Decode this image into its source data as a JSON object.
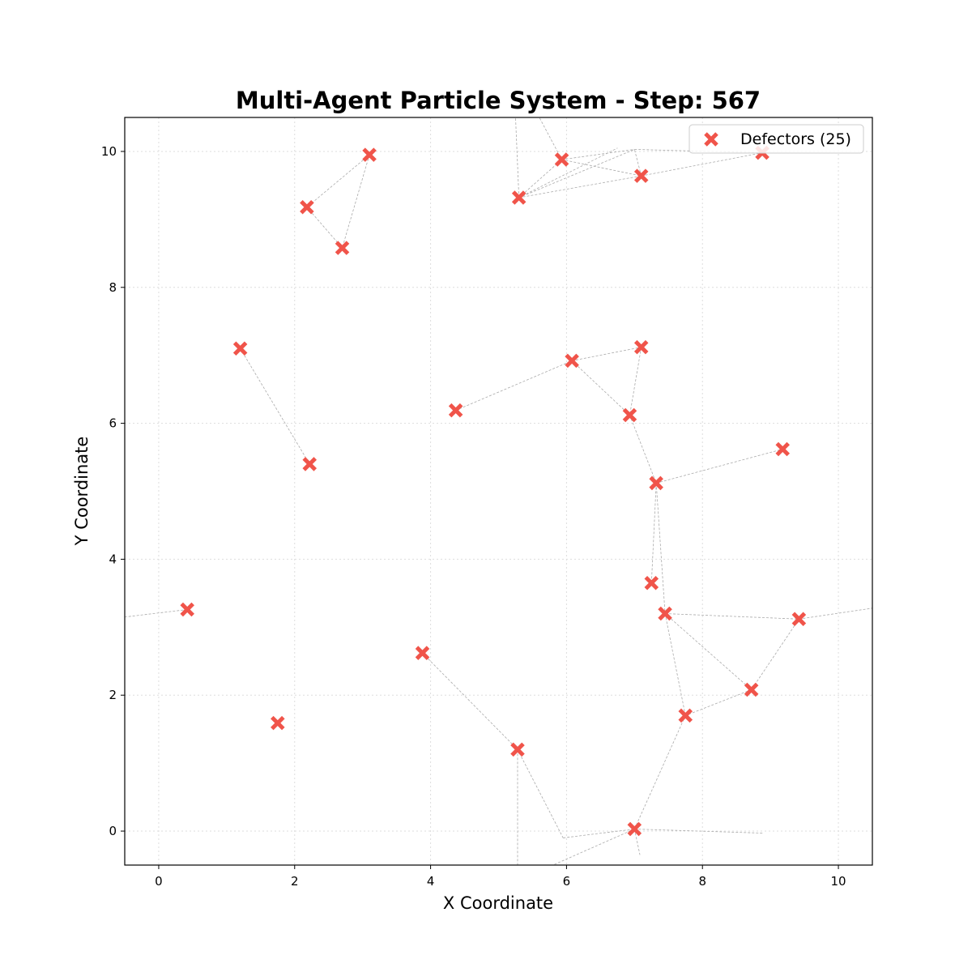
{
  "chart_data": {
    "type": "scatter",
    "title": "Multi-Agent Particle System - Step: 567",
    "xlabel": "X Coordinate",
    "ylabel": "Y Coordinate",
    "xlim": [
      -0.5,
      10.5
    ],
    "ylim": [
      -0.5,
      10.5
    ],
    "xticks": [
      0,
      2,
      4,
      6,
      8,
      10
    ],
    "yticks": [
      0,
      2,
      4,
      6,
      8,
      10
    ],
    "grid": true,
    "legend": {
      "placement": "top-right",
      "entries": [
        "Defectors (25)"
      ]
    },
    "colors": {
      "defector": "#f0544a",
      "link": "#aaaaaa",
      "grid": "#dddddd"
    },
    "series": [
      {
        "name": "Defectors (25)",
        "marker": "x",
        "points": [
          [
            3.1,
            9.95
          ],
          [
            2.18,
            9.18
          ],
          [
            2.7,
            8.58
          ],
          [
            5.3,
            9.32
          ],
          [
            5.93,
            9.88
          ],
          [
            7.1,
            9.64
          ],
          [
            8.88,
            9.98
          ],
          [
            1.2,
            7.1
          ],
          [
            2.22,
            5.4
          ],
          [
            4.37,
            6.19
          ],
          [
            6.08,
            6.92
          ],
          [
            7.1,
            7.12
          ],
          [
            6.93,
            6.12
          ],
          [
            9.18,
            5.62
          ],
          [
            7.32,
            5.12
          ],
          [
            7.25,
            3.65
          ],
          [
            7.45,
            3.2
          ],
          [
            9.42,
            3.12
          ],
          [
            0.42,
            3.26
          ],
          [
            3.88,
            2.62
          ],
          [
            8.72,
            2.08
          ],
          [
            7.75,
            1.7
          ],
          [
            1.75,
            1.59
          ],
          [
            5.28,
            1.2
          ],
          [
            7.0,
            0.03
          ]
        ]
      }
    ],
    "links": [
      [
        [
          3.1,
          9.95
        ],
        [
          2.18,
          9.18
        ]
      ],
      [
        [
          3.1,
          9.95
        ],
        [
          2.7,
          8.58
        ]
      ],
      [
        [
          2.18,
          9.18
        ],
        [
          2.7,
          8.58
        ]
      ],
      [
        [
          5.3,
          9.32
        ],
        [
          5.93,
          9.88
        ]
      ],
      [
        [
          5.3,
          9.32
        ],
        [
          7.1,
          9.64
        ]
      ],
      [
        [
          5.3,
          9.32
        ],
        [
          7.0,
          10.03
        ]
      ],
      [
        [
          5.3,
          9.32
        ],
        [
          6.75,
          10.05
        ]
      ],
      [
        [
          5.3,
          9.32
        ],
        [
          5.25,
          10.5
        ]
      ],
      [
        [
          5.93,
          9.88
        ],
        [
          5.6,
          10.5
        ]
      ],
      [
        [
          5.93,
          9.88
        ],
        [
          7.1,
          9.64
        ]
      ],
      [
        [
          5.93,
          9.88
        ],
        [
          7.0,
          10.03
        ]
      ],
      [
        [
          7.1,
          9.64
        ],
        [
          8.88,
          9.98
        ]
      ],
      [
        [
          7.1,
          9.64
        ],
        [
          7.0,
          10.03
        ]
      ],
      [
        [
          7.0,
          10.03
        ],
        [
          8.88,
          9.98
        ]
      ],
      [
        [
          1.2,
          7.1
        ],
        [
          2.22,
          5.4
        ]
      ],
      [
        [
          4.37,
          6.19
        ],
        [
          6.08,
          6.92
        ]
      ],
      [
        [
          6.08,
          6.92
        ],
        [
          7.1,
          7.12
        ]
      ],
      [
        [
          6.08,
          6.92
        ],
        [
          6.93,
          6.12
        ]
      ],
      [
        [
          7.1,
          7.12
        ],
        [
          6.93,
          6.12
        ]
      ],
      [
        [
          6.93,
          6.12
        ],
        [
          7.32,
          5.12
        ]
      ],
      [
        [
          7.32,
          5.12
        ],
        [
          9.18,
          5.62
        ]
      ],
      [
        [
          7.32,
          5.12
        ],
        [
          7.25,
          3.65
        ]
      ],
      [
        [
          7.32,
          5.12
        ],
        [
          7.45,
          3.2
        ]
      ],
      [
        [
          7.45,
          3.2
        ],
        [
          9.42,
          3.12
        ]
      ],
      [
        [
          9.42,
          3.12
        ],
        [
          10.5,
          3.28
        ]
      ],
      [
        [
          7.45,
          3.2
        ],
        [
          8.72,
          2.08
        ]
      ],
      [
        [
          7.45,
          3.2
        ],
        [
          7.75,
          1.7
        ]
      ],
      [
        [
          9.42,
          3.12
        ],
        [
          8.72,
          2.08
        ]
      ],
      [
        [
          8.72,
          2.08
        ],
        [
          7.75,
          1.7
        ]
      ],
      [
        [
          7.75,
          1.7
        ],
        [
          7.0,
          0.03
        ]
      ],
      [
        [
          0.42,
          3.26
        ],
        [
          -0.5,
          3.15
        ]
      ],
      [
        [
          3.88,
          2.62
        ],
        [
          5.28,
          1.2
        ]
      ],
      [
        [
          5.28,
          1.2
        ],
        [
          5.95,
          -0.1
        ]
      ],
      [
        [
          5.28,
          1.2
        ],
        [
          5.28,
          -0.5
        ]
      ],
      [
        [
          5.95,
          -0.1
        ],
        [
          7.0,
          0.03
        ]
      ],
      [
        [
          7.0,
          0.03
        ],
        [
          8.9,
          -0.03
        ]
      ],
      [
        [
          7.0,
          0.03
        ],
        [
          7.08,
          -0.35
        ]
      ],
      [
        [
          7.0,
          0.03
        ],
        [
          5.8,
          -0.5
        ]
      ]
    ]
  }
}
